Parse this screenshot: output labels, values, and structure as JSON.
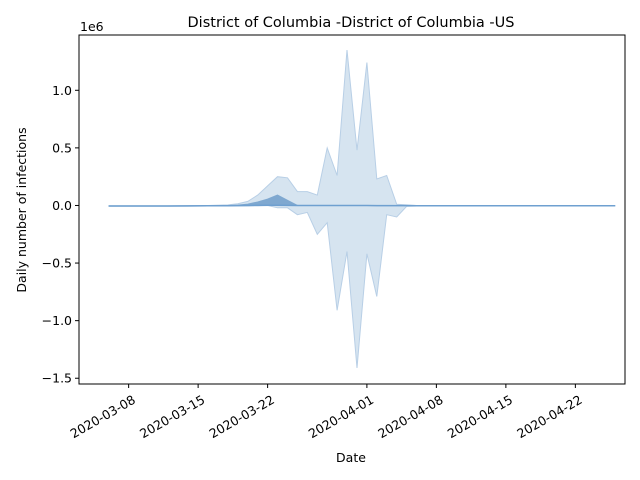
{
  "chart_data": {
    "type": "area",
    "title": "District of Columbia -District of Columbia -US",
    "xlabel": "Date",
    "ylabel": "Daily number of infections",
    "y_offset_label": "1e6",
    "y_scale": 1000000,
    "xlim": [
      "2020-03-03",
      "2020-04-27"
    ],
    "ylim": [
      -1550000,
      1480000
    ],
    "x_ticks": [
      "2020-03-08",
      "2020-03-15",
      "2020-03-22",
      "2020-04-01",
      "2020-04-08",
      "2020-04-15",
      "2020-04-22"
    ],
    "y_ticks": [
      -1500000,
      -1000000,
      -500000,
      0,
      500000,
      1000000
    ],
    "y_tick_labels": [
      "−1.5",
      "−1.0",
      "−0.5",
      "0.0",
      "0.5",
      "1.0"
    ],
    "grid": false,
    "legend": "none",
    "colors": {
      "line": "#6fa0d0",
      "outer_band": "#d6e4f0",
      "outer_band_edge": "#b8cfe6",
      "inner_band": "#7fa8d0"
    },
    "x": [
      "2020-03-06",
      "2020-03-08",
      "2020-03-10",
      "2020-03-12",
      "2020-03-14",
      "2020-03-16",
      "2020-03-18",
      "2020-03-19",
      "2020-03-20",
      "2020-03-21",
      "2020-03-22",
      "2020-03-23",
      "2020-03-24",
      "2020-03-25",
      "2020-03-26",
      "2020-03-27",
      "2020-03-28",
      "2020-03-29",
      "2020-03-30",
      "2020-03-31",
      "2020-04-01",
      "2020-04-02",
      "2020-04-03",
      "2020-04-04",
      "2020-04-05",
      "2020-04-06",
      "2020-04-08",
      "2020-04-12",
      "2020-04-16",
      "2020-04-20",
      "2020-04-24",
      "2020-04-26"
    ],
    "series": [
      {
        "role": "mean",
        "values": [
          -5000,
          -5000,
          -5000,
          -4500,
          -4000,
          -3000,
          -2000,
          -1000,
          0,
          1000,
          2000,
          2000,
          1000,
          0,
          0,
          0,
          0,
          0,
          0,
          0,
          0,
          -1000,
          -1000,
          -1000,
          -1000,
          -2000,
          -3000,
          -3000,
          -3000,
          -3000,
          -3000,
          -3000
        ]
      },
      {
        "role": "outer_upper",
        "values": [
          -3000,
          -3000,
          -3000,
          -3000,
          -2000,
          0,
          5000,
          15000,
          35000,
          90000,
          170000,
          250000,
          240000,
          120000,
          120000,
          90000,
          500000,
          260000,
          1350000,
          480000,
          1240000,
          230000,
          260000,
          10000,
          5000,
          0,
          -2000,
          -2000,
          -2000,
          -2000,
          -2000,
          -2000
        ]
      },
      {
        "role": "outer_lower",
        "values": [
          -7000,
          -7000,
          -7000,
          -7000,
          -6000,
          -5000,
          -4000,
          -3000,
          -2000,
          -2000,
          0,
          -20000,
          -20000,
          -80000,
          -60000,
          -250000,
          -150000,
          -910000,
          -400000,
          -1410000,
          -420000,
          -790000,
          -80000,
          -100000,
          -8000,
          -5000,
          -4000,
          -4000,
          -4000,
          -4000,
          -4000,
          -4000
        ]
      },
      {
        "role": "inner_upper",
        "values": [
          -5000,
          -5000,
          -5000,
          -4500,
          -4000,
          -3000,
          0,
          3000,
          12000,
          30000,
          55000,
          90000,
          45000,
          0,
          0,
          0,
          0,
          0,
          0,
          0,
          0,
          -1000,
          -1000,
          -1000,
          -1000,
          -2000,
          -3000,
          -3000,
          -3000,
          -3000,
          -3000,
          -3000
        ]
      },
      {
        "role": "inner_lower",
        "values": [
          -5000,
          -5000,
          -5000,
          -4500,
          -4000,
          -3000,
          -2000,
          -1000,
          -1000,
          0,
          0,
          0,
          0,
          0,
          0,
          0,
          0,
          0,
          0,
          0,
          0,
          -1000,
          -1000,
          -1000,
          -1000,
          -2000,
          -3000,
          -3000,
          -3000,
          -3000,
          -3000,
          -3000
        ]
      }
    ]
  }
}
